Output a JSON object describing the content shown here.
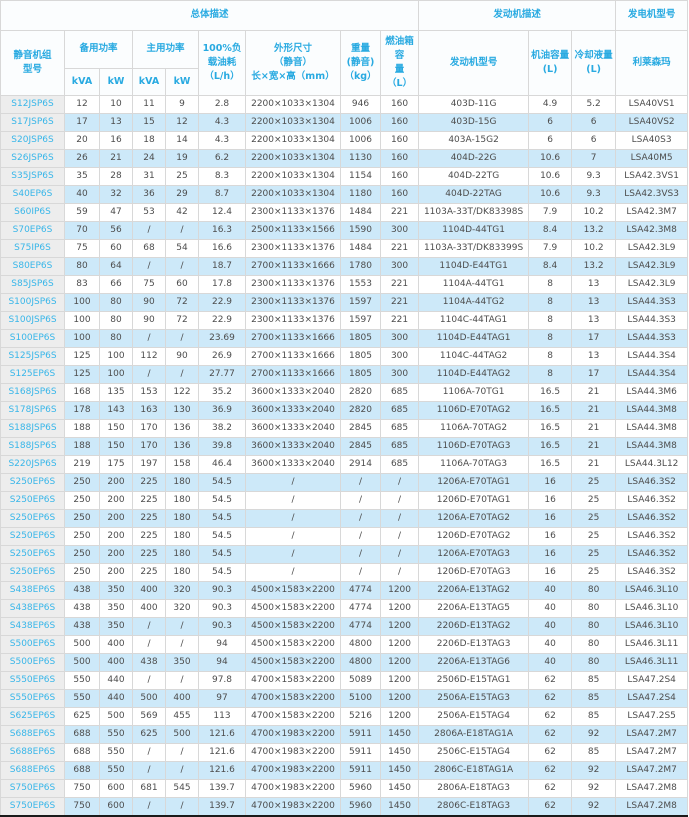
{
  "colors": {
    "accent_blue_text": "#29aae1",
    "model_link_blue": "#38b6e9",
    "alt_row_bg": "#cde9f9",
    "model_col_bg": "#ededed",
    "grid_border": "#d8d8d8",
    "section_divider": "#999999",
    "outer_border": "#1a1a1a",
    "data_text": "#4d4d4d"
  },
  "header": {
    "group_overall": "总体描述",
    "group_engine": "发动机描述",
    "group_generator": "发电机型号",
    "col_model": [
      "静音机组",
      "型号"
    ],
    "col_standby": "备用功率",
    "col_prime": "主用功率",
    "kva": "kVA",
    "kw": "kW",
    "col_fuel_consumption": [
      "100%负",
      "载油耗",
      "（L/h）"
    ],
    "col_dimensions": [
      "外形尺寸",
      "（静音）",
      "长×宽×高（mm）"
    ],
    "col_weight": [
      "重量",
      "(静音)",
      "（kg）"
    ],
    "col_fuel_tank": [
      "燃油箱容",
      "量",
      "（L）"
    ],
    "col_engine_model": "发动机型号",
    "col_oil_capacity": [
      "机油容量",
      "(L)"
    ],
    "col_coolant_capacity": [
      "冷却液量",
      "(L)"
    ],
    "col_leroy_somer": "利莱森玛"
  },
  "table": {
    "cell_names": [
      "model-link",
      "standby-kva",
      "standby-kw",
      "prime-kva",
      "prime-kw",
      "fuel-consumption",
      "dimensions",
      "weight",
      "fuel-tank-capacity",
      "engine-model",
      "oil-capacity",
      "coolant-capacity",
      "generator-model"
    ],
    "row_fields": [
      "model",
      "standby_kva",
      "standby_kw",
      "prime_kva",
      "prime_kw",
      "fuel_lph",
      "dimensions_mm",
      "weight_kg",
      "tank_l",
      "engine",
      "oil_l",
      "coolant_l",
      "generator"
    ],
    "rows": [
      [
        "S12JSP6S",
        "12",
        "10",
        "11",
        "9",
        "2.8",
        "2200×1033×1304",
        "946",
        "160",
        "403D-11G",
        "4.9",
        "5.2",
        "LSA40VS1"
      ],
      [
        "S17JSP6S",
        "17",
        "13",
        "15",
        "12",
        "4.3",
        "2200×1033×1304",
        "1006",
        "160",
        "403D-15G",
        "6",
        "6",
        "LSA40VS2"
      ],
      [
        "S20JSP6S",
        "20",
        "16",
        "18",
        "14",
        "4.3",
        "2200×1033×1304",
        "1006",
        "160",
        "403A-15G2",
        "6",
        "6",
        "LSA40S3"
      ],
      [
        "S26JSP6S",
        "26",
        "21",
        "24",
        "19",
        "6.2",
        "2200×1033×1304",
        "1130",
        "160",
        "404D-22G",
        "10.6",
        "7",
        "LSA40M5"
      ],
      [
        "S35JSP6S",
        "35",
        "28",
        "31",
        "25",
        "8.3",
        "2200×1033×1304",
        "1154",
        "160",
        "404D-22TG",
        "10.6",
        "9.3",
        "LSA42.3VS1"
      ],
      [
        "S40EP6S",
        "40",
        "32",
        "36",
        "29",
        "8.7",
        "2200×1033×1304",
        "1180",
        "160",
        "404D-22TAG",
        "10.6",
        "9.3",
        "LSA42.3VS3"
      ],
      [
        "S60IP6S",
        "59",
        "47",
        "53",
        "42",
        "12.4",
        "2300×1133×1376",
        "1484",
        "221",
        "1103A-33T/DK83398S",
        "7.9",
        "10.2",
        "LSA42.3M7"
      ],
      [
        "S70EP6S",
        "70",
        "56",
        "/",
        "/",
        "16.3",
        "2500×1133×1566",
        "1590",
        "300",
        "1104D-44TG1",
        "8.4",
        "13.2",
        "LSA42.3M8"
      ],
      [
        "S75IP6S",
        "75",
        "60",
        "68",
        "54",
        "16.6",
        "2300×1133×1376",
        "1484",
        "221",
        "1103A-33T/DK83399S",
        "7.9",
        "10.2",
        "LSA42.3L9"
      ],
      [
        "S80EP6S",
        "80",
        "64",
        "/",
        "/",
        "18.7",
        "2700×1133×1666",
        "1780",
        "300",
        "1104D-E44TG1",
        "8.4",
        "13.2",
        "LSA42.3L9"
      ],
      [
        "S85JSP6S",
        "83",
        "66",
        "75",
        "60",
        "17.8",
        "2300×1133×1376",
        "1553",
        "221",
        "1104A-44TG1",
        "8",
        "13",
        "LSA42.3L9"
      ],
      [
        "S100JSP6S",
        "100",
        "80",
        "90",
        "72",
        "22.9",
        "2300×1133×1376",
        "1597",
        "221",
        "1104A-44TG2",
        "8",
        "13",
        "LSA44.3S3"
      ],
      [
        "S100JSP6S",
        "100",
        "80",
        "90",
        "72",
        "22.9",
        "2300×1133×1376",
        "1597",
        "221",
        "1104C-44TAG1",
        "8",
        "13",
        "LSA44.3S3"
      ],
      [
        "S100EP6S",
        "100",
        "80",
        "/",
        "/",
        "23.69",
        "2700×1133×1666",
        "1805",
        "300",
        "1104D-E44TAG1",
        "8",
        "17",
        "LSA44.3S3"
      ],
      [
        "S125JSP6S",
        "125",
        "100",
        "112",
        "90",
        "26.9",
        "2700×1133×1666",
        "1805",
        "300",
        "1104C-44TAG2",
        "8",
        "13",
        "LSA44.3S4"
      ],
      [
        "S125EP6S",
        "125",
        "100",
        "/",
        "/",
        "27.77",
        "2700×1133×1666",
        "1805",
        "300",
        "1104D-E44TAG2",
        "8",
        "17",
        "LSA44.3S4"
      ],
      [
        "S168JSP6S",
        "168",
        "135",
        "153",
        "122",
        "35.2",
        "3600×1333×2040",
        "2820",
        "685",
        "1106A-70TG1",
        "16.5",
        "21",
        "LSA44.3M6"
      ],
      [
        "S178JSP6S",
        "178",
        "143",
        "163",
        "130",
        "36.9",
        "3600×1333×2040",
        "2820",
        "685",
        "1106D-E70TAG2",
        "16.5",
        "21",
        "LSA44.3M8"
      ],
      [
        "S188JSP6S",
        "188",
        "150",
        "170",
        "136",
        "38.2",
        "3600×1333×2040",
        "2845",
        "685",
        "1106A-70TAG2",
        "16.5",
        "21",
        "LSA44.3M8"
      ],
      [
        "S188JSP6S",
        "188",
        "150",
        "170",
        "136",
        "39.8",
        "3600×1333×2040",
        "2845",
        "685",
        "1106D-E70TAG3",
        "16.5",
        "21",
        "LSA44.3M8"
      ],
      [
        "S220JSP6S",
        "219",
        "175",
        "197",
        "158",
        "46.4",
        "3600×1333×2040",
        "2914",
        "685",
        "1106A-70TAG3",
        "16.5",
        "21",
        "LSA44.3L12"
      ],
      [
        "S250EP6S",
        "250",
        "200",
        "225",
        "180",
        "54.5",
        "/",
        "/",
        "/",
        "1206A-E70TAG1",
        "16",
        "25",
        "LSA46.3S2"
      ],
      [
        "S250EP6S",
        "250",
        "200",
        "225",
        "180",
        "54.5",
        "/",
        "/",
        "/",
        "1206D-E70TAG1",
        "16",
        "25",
        "LSA46.3S2"
      ],
      [
        "S250EP6S",
        "250",
        "200",
        "225",
        "180",
        "54.5",
        "/",
        "/",
        "/",
        "1206A-E70TAG2",
        "16",
        "25",
        "LSA46.3S2"
      ],
      [
        "S250EP6S",
        "250",
        "200",
        "225",
        "180",
        "54.5",
        "/",
        "/",
        "/",
        "1206D-E70TAG2",
        "16",
        "25",
        "LSA46.3S2"
      ],
      [
        "S250EP6S",
        "250",
        "200",
        "225",
        "180",
        "54.5",
        "/",
        "/",
        "/",
        "1206A-E70TAG3",
        "16",
        "25",
        "LSA46.3S2"
      ],
      [
        "S250EP6S",
        "250",
        "200",
        "225",
        "180",
        "54.5",
        "/",
        "/",
        "/",
        "1206D-E70TAG3",
        "16",
        "25",
        "LSA46.3S2"
      ],
      [
        "S438EP6S",
        "438",
        "350",
        "400",
        "320",
        "90.3",
        "4500×1583×2200",
        "4774",
        "1200",
        "2206A-E13TAG2",
        "40",
        "80",
        "LSA46.3L10"
      ],
      [
        "S438EP6S",
        "438",
        "350",
        "400",
        "320",
        "90.3",
        "4500×1583×2200",
        "4774",
        "1200",
        "2206A-E13TAG5",
        "40",
        "80",
        "LSA46.3L10"
      ],
      [
        "S438EP6S",
        "438",
        "350",
        "/",
        "/",
        "90.3",
        "4500×1583×2200",
        "4774",
        "1200",
        "2206D-E13TAG2",
        "40",
        "80",
        "LSA46.3L10"
      ],
      [
        "S500EP6S",
        "500",
        "400",
        "/",
        "/",
        "94",
        "4500×1583×2200",
        "4800",
        "1200",
        "2206D-E13TAG3",
        "40",
        "80",
        "LSA46.3L11"
      ],
      [
        "S500EP6S",
        "500",
        "400",
        "438",
        "350",
        "94",
        "4500×1583×2200",
        "4800",
        "1200",
        "2206A-E13TAG6",
        "40",
        "80",
        "LSA46.3L11"
      ],
      [
        "S550EP6S",
        "550",
        "440",
        "/",
        "/",
        "97.8",
        "4700×1583×2200",
        "5089",
        "1200",
        "2506D-E15TAG1",
        "62",
        "85",
        "LSA47.2S4"
      ],
      [
        "S550EP6S",
        "550",
        "440",
        "500",
        "400",
        "97",
        "4700×1583×2200",
        "5100",
        "1200",
        "2506A-E15TAG3",
        "62",
        "85",
        "LSA47.2S4"
      ],
      [
        "S625EP6S",
        "625",
        "500",
        "569",
        "455",
        "113",
        "4700×1583×2200",
        "5216",
        "1200",
        "2506A-E15TAG4",
        "62",
        "85",
        "LSA47.2S5"
      ],
      [
        "S688EP6S",
        "688",
        "550",
        "625",
        "500",
        "121.6",
        "4700×1983×2200",
        "5911",
        "1450",
        "2806A-E18TAG1A",
        "62",
        "92",
        "LSA47.2M7"
      ],
      [
        "S688EP6S",
        "688",
        "550",
        "/",
        "/",
        "121.6",
        "4700×1983×2200",
        "5911",
        "1450",
        "2506C-E15TAG4",
        "62",
        "85",
        "LSA47.2M7"
      ],
      [
        "S688EP6S",
        "688",
        "550",
        "/",
        "/",
        "121.6",
        "4700×1983×2200",
        "5911",
        "1450",
        "2806C-E18TAG1A",
        "62",
        "92",
        "LSA47.2M7"
      ],
      [
        "S750EP6S",
        "750",
        "600",
        "681",
        "545",
        "139.7",
        "4700×1983×2200",
        "5960",
        "1450",
        "2806A-E18TAG3",
        "62",
        "92",
        "LSA47.2M8"
      ],
      [
        "S750EP6S",
        "750",
        "600",
        "/",
        "/",
        "139.7",
        "4700×1983×2200",
        "5960",
        "1450",
        "2806C-E18TAG3",
        "62",
        "92",
        "LSA47.2M8"
      ]
    ]
  }
}
